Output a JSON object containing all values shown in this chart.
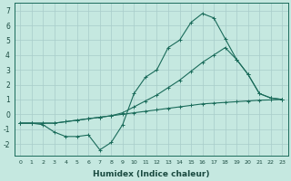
{
  "xlabel": "Humidex (Indice chaleur)",
  "background_color": "#c5e8e0",
  "grid_color": "#a8ccca",
  "line_color": "#1a6b5a",
  "x_values": [
    0,
    1,
    2,
    3,
    4,
    5,
    6,
    7,
    8,
    9,
    10,
    11,
    12,
    13,
    14,
    15,
    16,
    17,
    18,
    19,
    20,
    21,
    22,
    23
  ],
  "y_zigzag": [
    -0.6,
    -0.6,
    -0.7,
    -1.2,
    -1.5,
    -1.5,
    -1.4,
    -2.4,
    -1.9,
    -0.7,
    1.4,
    2.5,
    3.0,
    4.5,
    5.0,
    6.2,
    6.8,
    6.5,
    5.1,
    3.7,
    2.7,
    1.4,
    1.1,
    1.0
  ],
  "y_upper": [
    -0.6,
    -0.6,
    -0.6,
    -0.6,
    -0.5,
    -0.4,
    -0.3,
    -0.2,
    -0.1,
    0.1,
    0.5,
    0.9,
    1.3,
    1.8,
    2.3,
    2.9,
    3.5,
    4.0,
    4.5,
    3.7,
    2.7,
    1.4,
    1.1,
    1.0
  ],
  "y_lower": [
    -0.6,
    -0.6,
    -0.6,
    -0.6,
    -0.5,
    -0.4,
    -0.3,
    -0.2,
    -0.1,
    0.0,
    0.1,
    0.2,
    0.3,
    0.4,
    0.5,
    0.6,
    0.7,
    0.75,
    0.8,
    0.85,
    0.9,
    0.95,
    0.97,
    1.0
  ],
  "ylim": [
    -2.8,
    7.5
  ],
  "xlim": [
    -0.5,
    23.5
  ],
  "yticks": [
    -2,
    -1,
    0,
    1,
    2,
    3,
    4,
    5,
    6,
    7
  ],
  "xticks": [
    0,
    1,
    2,
    3,
    4,
    5,
    6,
    7,
    8,
    9,
    10,
    11,
    12,
    13,
    14,
    15,
    16,
    17,
    18,
    19,
    20,
    21,
    22,
    23
  ]
}
